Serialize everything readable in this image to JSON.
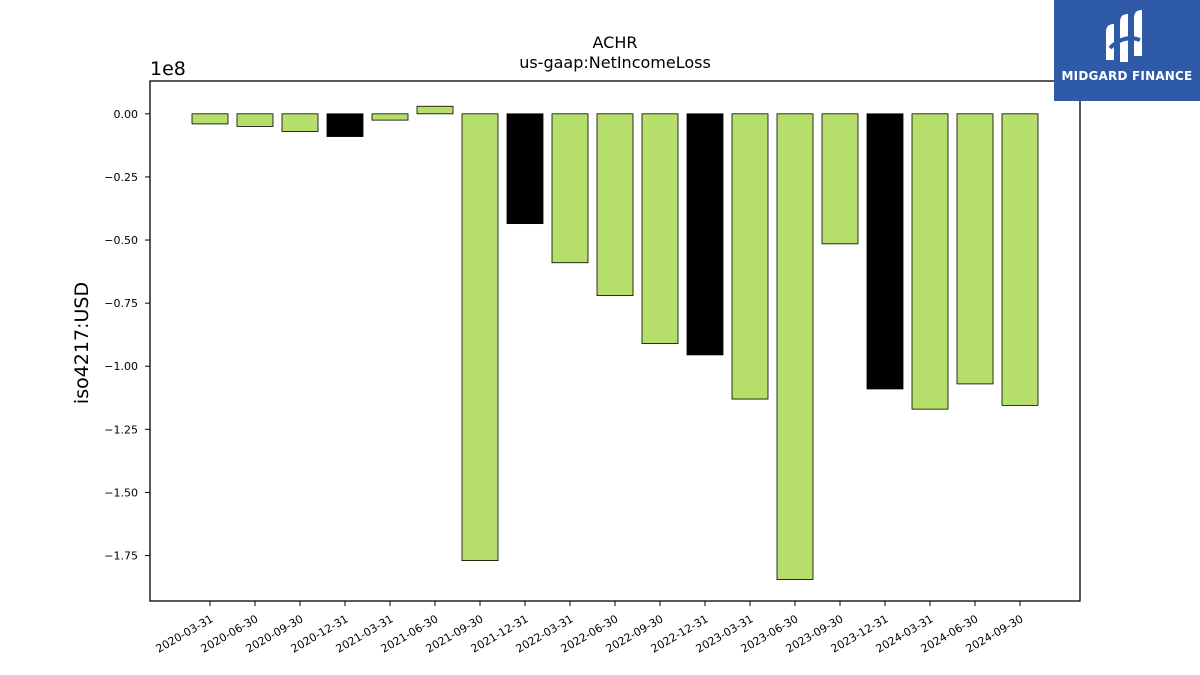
{
  "chart_data": {
    "type": "bar",
    "title": "ACHR",
    "subtitle": "us-gaap:NetIncomeLoss",
    "ylabel": "iso4217:USD",
    "xlabel": "",
    "offset_label": "1e8",
    "ylim": [
      -1.93,
      0.13
    ],
    "yticks": [
      0.0,
      -0.25,
      -0.5,
      -0.75,
      -1.0,
      -1.25,
      -1.5,
      -1.75
    ],
    "ytick_labels": [
      "0.00",
      "−0.25",
      "−0.50",
      "−0.75",
      "−1.00",
      "−1.25",
      "−1.50",
      "−1.75"
    ],
    "categories": [
      "2020-03-31",
      "2020-06-30",
      "2020-09-30",
      "2020-12-31",
      "2021-03-31",
      "2021-06-30",
      "2021-09-30",
      "2021-12-31",
      "2022-03-31",
      "2022-06-30",
      "2022-09-30",
      "2022-12-31",
      "2023-03-31",
      "2023-06-30",
      "2023-09-30",
      "2023-12-31",
      "2024-03-31",
      "2024-06-30",
      "2024-09-30"
    ],
    "values": [
      -0.04,
      -0.05,
      -0.07,
      -0.09,
      -0.025,
      0.03,
      -1.77,
      -0.435,
      -0.59,
      -0.72,
      -0.91,
      -0.955,
      -1.13,
      -1.845,
      -0.515,
      -1.09,
      -1.17,
      -1.07,
      -1.155
    ],
    "bar_colors": [
      "#b5de6b",
      "#b5de6b",
      "#b5de6b",
      "#000000",
      "#b5de6b",
      "#b5de6b",
      "#b5de6b",
      "#000000",
      "#b5de6b",
      "#b5de6b",
      "#b5de6b",
      "#000000",
      "#b5de6b",
      "#b5de6b",
      "#b5de6b",
      "#000000",
      "#b5de6b",
      "#b5de6b",
      "#b5de6b"
    ],
    "grid": false,
    "colors": {
      "quarter": "#b5de6b",
      "year_end": "#000000"
    }
  },
  "logo": {
    "text": "MIDGARD FINANCE",
    "background": "#2e5aa8"
  }
}
